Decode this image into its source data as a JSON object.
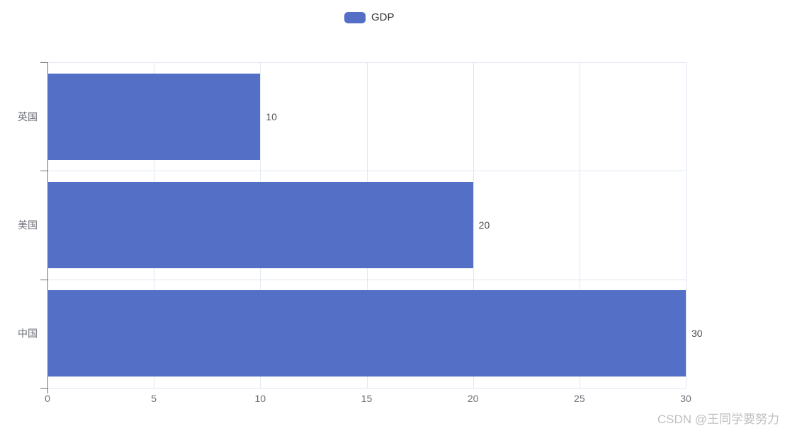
{
  "legend": {
    "label": "GDP",
    "marker_color": "#5470C6"
  },
  "watermark": "CSDN @王同学要努力",
  "colors": {
    "bar": "#5470C6",
    "axis_line": "#6E7079",
    "grid_line": "#E0E6F1",
    "axis_label": "#6E7079",
    "value_label": "#4d4d4d",
    "watermark": "#bfbfbf"
  },
  "chart_data": {
    "type": "bar",
    "orientation": "horizontal",
    "title": "",
    "categories": [
      "英国",
      "美国",
      "中国"
    ],
    "series": [
      {
        "name": "GDP",
        "values": [
          10,
          20,
          30
        ]
      }
    ],
    "x_ticks": [
      0,
      5,
      10,
      15,
      20,
      25,
      30
    ],
    "xlim": [
      0,
      30
    ],
    "ylabel": "",
    "xlabel": "",
    "grid": true,
    "legend_position": "top-center",
    "value_labels_shown": true,
    "value_label_position": "right-of-bar"
  }
}
